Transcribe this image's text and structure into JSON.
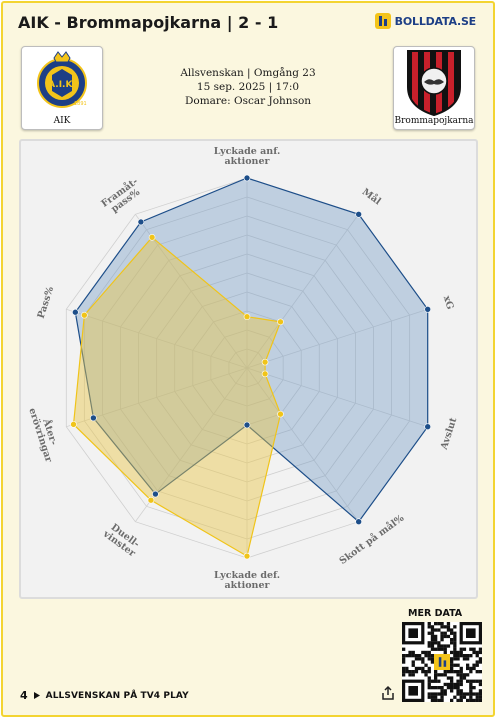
{
  "header": {
    "title": "AIK - Brommapojkarna | 2 - 1",
    "brand": "BOLLDATA.SE"
  },
  "home_team": {
    "name": "AIK"
  },
  "away_team": {
    "name": "Brommapojkarna"
  },
  "match_info": {
    "competition_round": "Allsvenskan | Omgång 23",
    "date_time": "15 sep. 2025 | 17:0",
    "referee": "Domare: Oscar Johnson"
  },
  "chart_data": {
    "type": "radar",
    "axes": [
      [
        "Lyckade anf.",
        "aktioner"
      ],
      [
        "Mål"
      ],
      [
        "xG"
      ],
      [
        "Avslut"
      ],
      [
        "Skott på mål%"
      ],
      [
        "Lyckade def.",
        "aktioner"
      ],
      [
        "Duell-",
        "vinster"
      ],
      [
        "Åter-",
        "erövringar"
      ],
      [
        "Pass%"
      ],
      [
        "Framåt-",
        "pass%"
      ]
    ],
    "scale": {
      "min": 0,
      "max": 1
    },
    "grid_rings": 10,
    "series": [
      {
        "team": "AIK",
        "color": "#1d4e89",
        "fill": "#6d95c2",
        "values": [
          1.0,
          1.0,
          1.0,
          1.0,
          1.0,
          0.3,
          0.82,
          0.85,
          0.95,
          0.95
        ]
      },
      {
        "team": "Brommapojkarna",
        "color": "#f0c419",
        "fill": "#e8c546",
        "values": [
          0.27,
          0.3,
          0.1,
          0.1,
          0.3,
          0.99,
          0.86,
          0.96,
          0.9,
          0.85
        ]
      }
    ]
  },
  "qr": {
    "heading": "MER DATA"
  },
  "footer": {
    "broadcaster": "ALLSVENSKAN PÅ TV4 PLAY",
    "tv4_mark": "4"
  }
}
